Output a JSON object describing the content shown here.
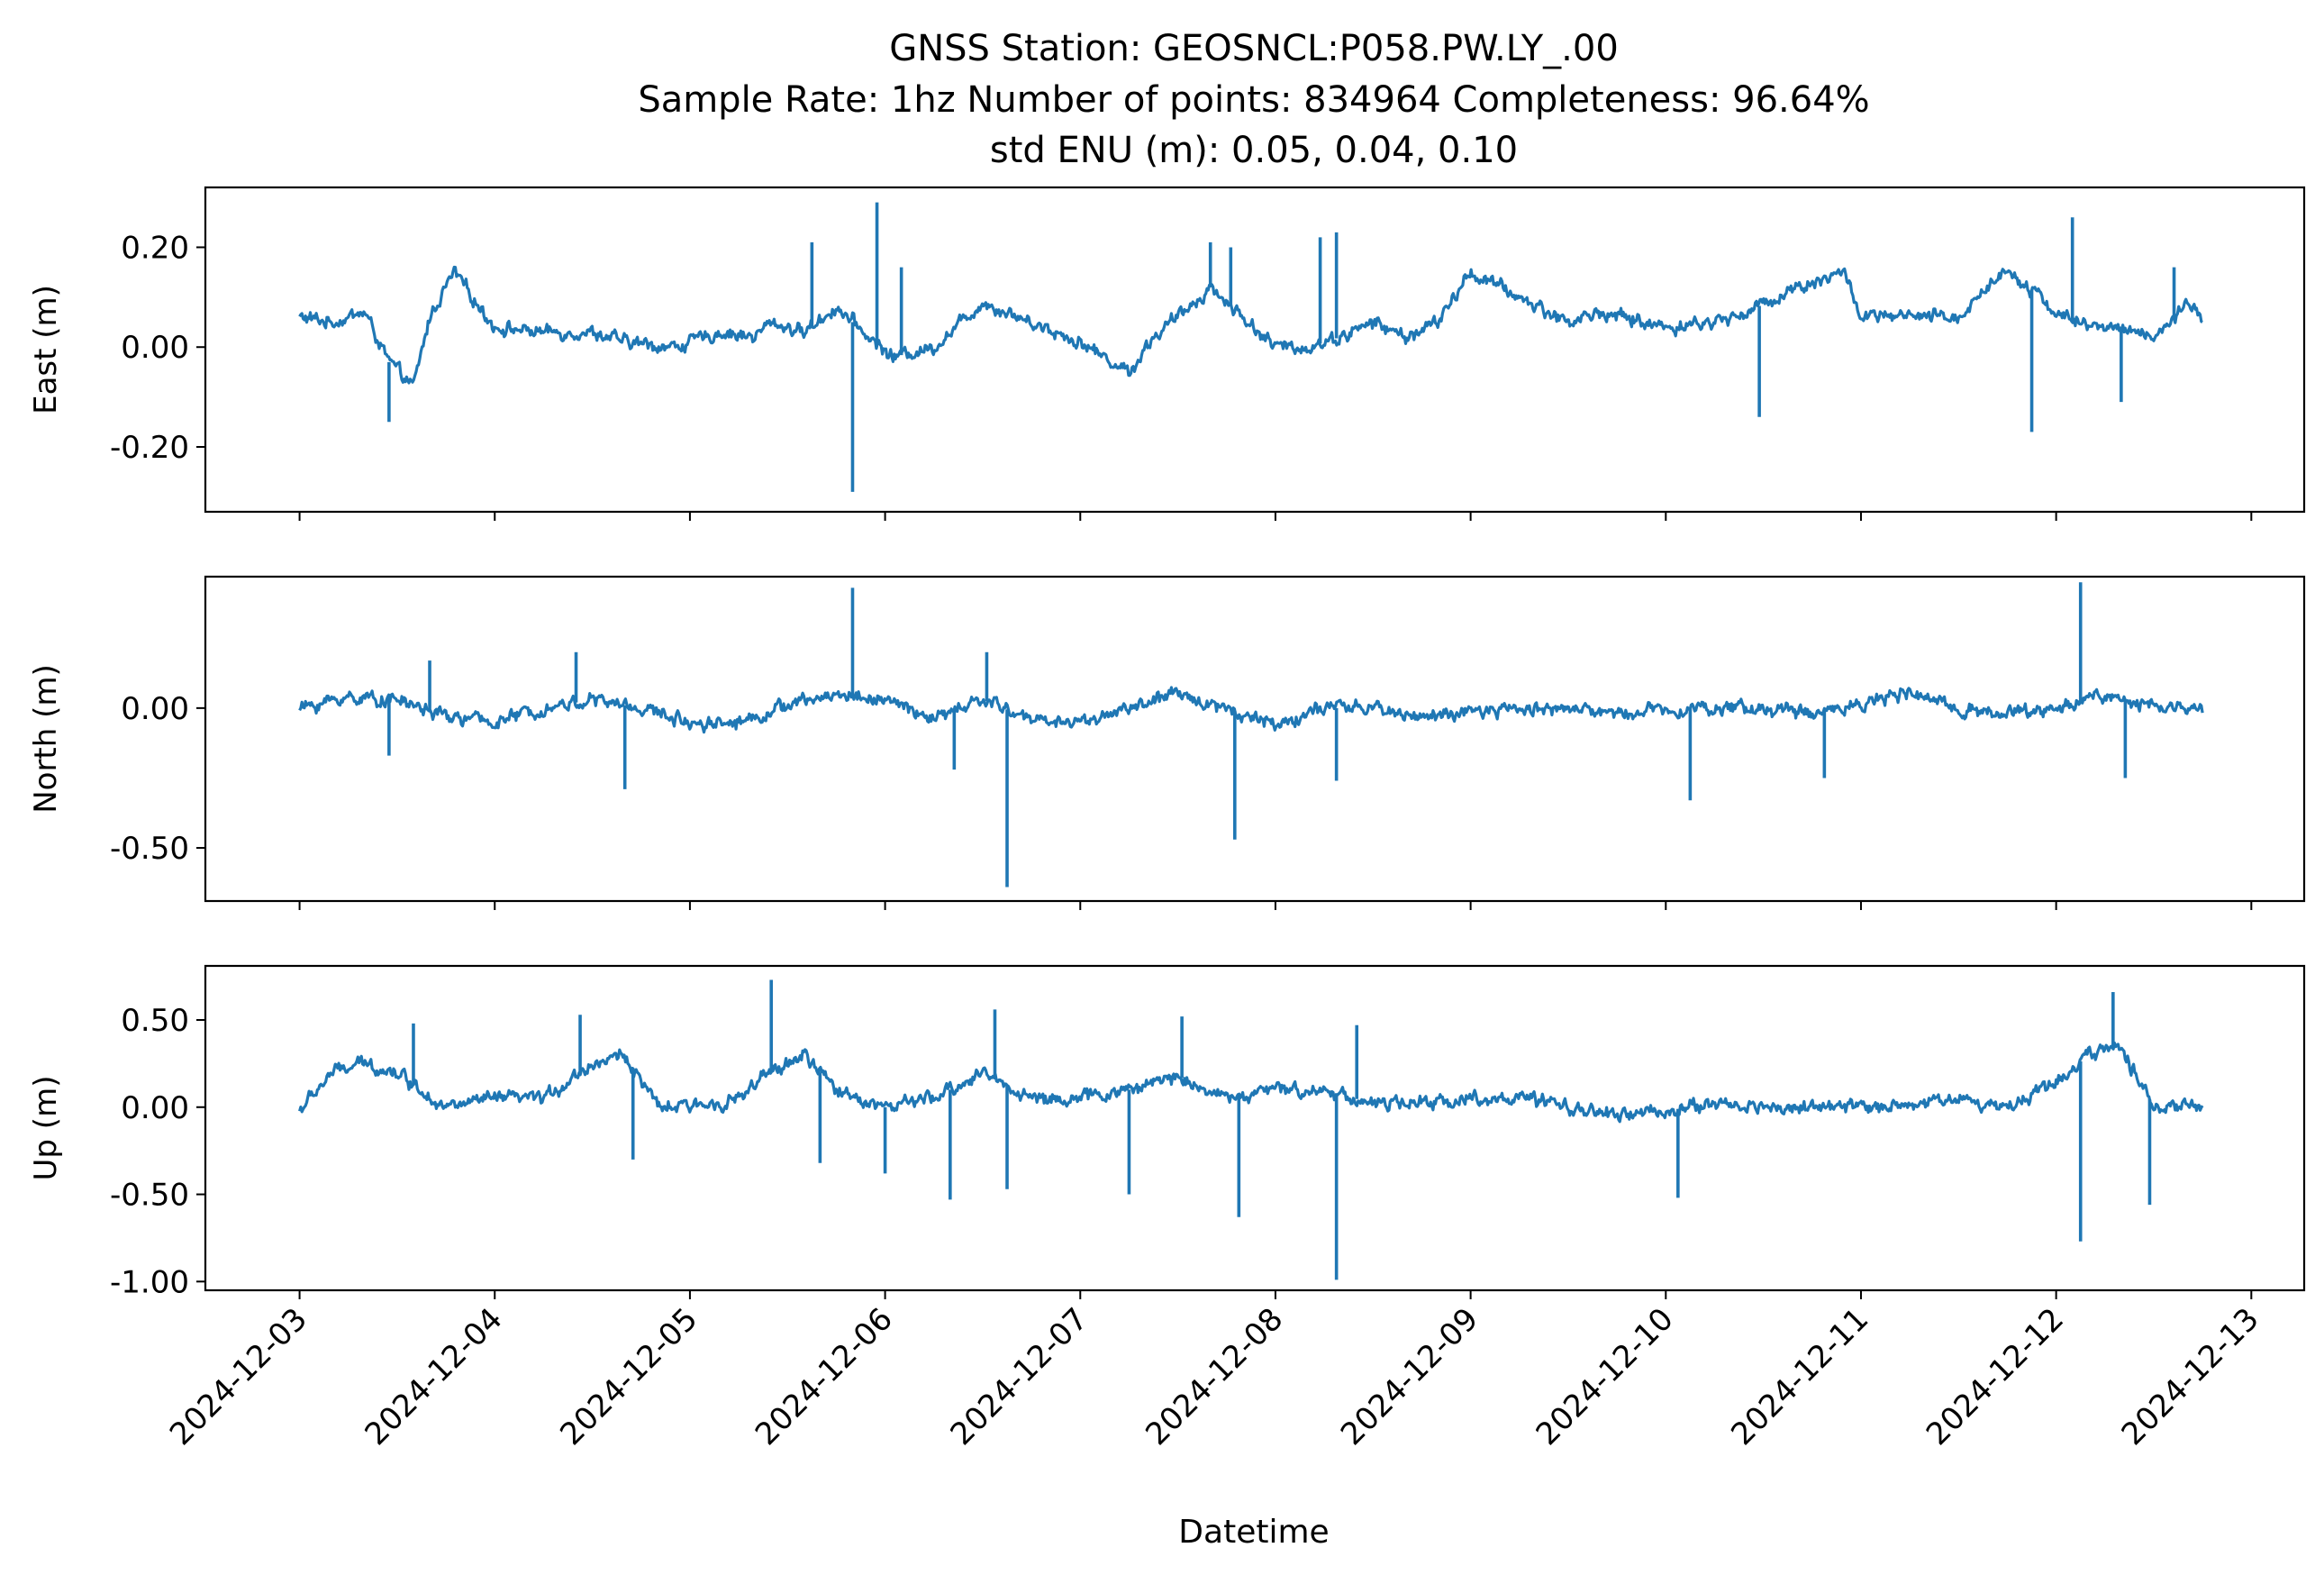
{
  "figure": {
    "title_lines": [
      "GNSS Station: GEOSNCL:P058.PW.LY_.00",
      "Sample Rate: 1hz   Number of points: 834964    Completeness:  96.64%",
      "std ENU (m):  0.05, 0.04, 0.10"
    ],
    "xlabel": "Datetime"
  },
  "chart_data": [
    {
      "type": "line",
      "ylabel": "East (m)",
      "color": "#1f77b4",
      "xlim": [
        "2024-12-02T12:25",
        "2024-12-13T06:30"
      ],
      "ylim": [
        -0.33,
        0.32
      ],
      "yticks": [
        0.2,
        0.0,
        -0.2
      ],
      "ytick_labels": [
        "0.20",
        "0.00",
        "-0.20"
      ],
      "xticks": [
        "2024-12-03",
        "2024-12-04",
        "2024-12-05",
        "2024-12-06",
        "2024-12-07",
        "2024-12-08",
        "2024-12-09",
        "2024-12-10",
        "2024-12-11",
        "2024-12-12",
        "2024-12-13"
      ],
      "series": [
        {
          "x": [
            "2024-12-03T00:00",
            "2024-12-03T04:00",
            "2024-12-03T08:00",
            "2024-12-03T11:00",
            "2024-12-03T14:00",
            "2024-12-03T16:00",
            "2024-12-03T19:00",
            "2024-12-04T00:00",
            "2024-12-04T06:00",
            "2024-12-04T12:00",
            "2024-12-04T16:00",
            "2024-12-04T22:00",
            "2024-12-05T04:00",
            "2024-12-05T08:00",
            "2024-12-05T10:00",
            "2024-12-05T14:00",
            "2024-12-05T18:00",
            "2024-12-05T22:00",
            "2024-12-06T01:00",
            "2024-12-06T06:00",
            "2024-12-06T12:00",
            "2024-12-06T18:00",
            "2024-12-07T00:00",
            "2024-12-07T06:00",
            "2024-12-07T09:00",
            "2024-12-07T12:00",
            "2024-12-07T16:00",
            "2024-12-07T20:00",
            "2024-12-08T00:00",
            "2024-12-08T04:00",
            "2024-12-08T08:00",
            "2024-12-08T12:00",
            "2024-12-08T16:00",
            "2024-12-08T20:00",
            "2024-12-09T00:00",
            "2024-12-09T06:00",
            "2024-12-09T12:00",
            "2024-12-09T16:00",
            "2024-12-10T00:00",
            "2024-12-10T06:00",
            "2024-12-10T10:00",
            "2024-12-10T16:00",
            "2024-12-10T22:00",
            "2024-12-11T00:00",
            "2024-12-11T06:00",
            "2024-12-11T12:00",
            "2024-12-11T18:00",
            "2024-12-12T00:00",
            "2024-12-12T04:00",
            "2024-12-12T08:00",
            "2024-12-12T12:00",
            "2024-12-12T16:00",
            "2024-12-12T18:00"
          ],
          "y": [
            0.06,
            0.05,
            0.07,
            -0.03,
            -0.08,
            0.06,
            0.15,
            0.04,
            0.03,
            0.03,
            0.01,
            0.0,
            0.03,
            0.02,
            0.05,
            0.03,
            0.08,
            0.02,
            -0.02,
            0.0,
            0.09,
            0.05,
            0.01,
            -0.05,
            0.02,
            0.06,
            0.12,
            0.06,
            0.0,
            0.0,
            0.02,
            0.05,
            0.02,
            0.05,
            0.15,
            0.1,
            0.05,
            0.07,
            0.04,
            0.05,
            0.07,
            0.12,
            0.15,
            0.06,
            0.06,
            0.06,
            0.16,
            0.07,
            0.04,
            0.04,
            0.02,
            0.08,
            0.06
          ],
          "spikes": [
            {
              "x": "2024-12-03T11:00",
              "y": -0.15
            },
            {
              "x": "2024-12-05T15:00",
              "y": 0.21
            },
            {
              "x": "2024-12-05T20:00",
              "y": -0.29
            },
            {
              "x": "2024-12-05T23:00",
              "y": 0.29
            },
            {
              "x": "2024-12-06T02:00",
              "y": 0.16
            },
            {
              "x": "2024-12-07T16:00",
              "y": 0.21
            },
            {
              "x": "2024-12-07T18:30",
              "y": 0.2
            },
            {
              "x": "2024-12-08T05:30",
              "y": 0.22
            },
            {
              "x": "2024-12-08T07:30",
              "y": 0.23
            },
            {
              "x": "2024-12-10T11:30",
              "y": -0.14
            },
            {
              "x": "2024-12-11T21:00",
              "y": -0.17
            },
            {
              "x": "2024-12-12T02:00",
              "y": 0.26
            },
            {
              "x": "2024-12-12T08:00",
              "y": -0.11
            },
            {
              "x": "2024-12-12T14:30",
              "y": 0.16
            }
          ]
        }
      ]
    },
    {
      "type": "line",
      "ylabel": "North (m)",
      "color": "#1f77b4",
      "xlim": [
        "2024-12-02T12:25",
        "2024-12-13T06:30"
      ],
      "ylim": [
        -0.69,
        0.47
      ],
      "yticks": [
        0.0,
        -0.5
      ],
      "ytick_labels": [
        "0.00",
        "-0.50"
      ],
      "xticks": [
        "2024-12-03",
        "2024-12-04",
        "2024-12-05",
        "2024-12-06",
        "2024-12-07",
        "2024-12-08",
        "2024-12-09",
        "2024-12-10",
        "2024-12-11",
        "2024-12-12",
        "2024-12-13"
      ],
      "series": [
        {
          "x": [
            "2024-12-03T00:00",
            "2024-12-03T06:00",
            "2024-12-03T12:00",
            "2024-12-03T18:00",
            "2024-12-04T00:00",
            "2024-12-04T06:00",
            "2024-12-04T12:00",
            "2024-12-04T18:00",
            "2024-12-05T00:00",
            "2024-12-05T06:00",
            "2024-12-05T12:00",
            "2024-12-05T18:00",
            "2024-12-06T00:00",
            "2024-12-06T06:00",
            "2024-12-06T12:00",
            "2024-12-06T18:00",
            "2024-12-07T00:00",
            "2024-12-07T06:00",
            "2024-12-07T12:00",
            "2024-12-07T18:00",
            "2024-12-08T00:00",
            "2024-12-08T06:00",
            "2024-12-08T12:00",
            "2024-12-08T18:00",
            "2024-12-09T00:00",
            "2024-12-09T06:00",
            "2024-12-09T12:00",
            "2024-12-09T18:00",
            "2024-12-10T00:00",
            "2024-12-10T06:00",
            "2024-12-10T12:00",
            "2024-12-10T18:00",
            "2024-12-11T00:00",
            "2024-12-11T06:00",
            "2024-12-11T12:00",
            "2024-12-11T18:00",
            "2024-12-12T00:00",
            "2024-12-12T06:00",
            "2024-12-12T12:00",
            "2024-12-12T18:00"
          ],
          "y": [
            0.0,
            0.04,
            0.03,
            -0.03,
            -0.05,
            0.0,
            0.03,
            0.0,
            -0.05,
            -0.05,
            0.01,
            0.05,
            0.03,
            -0.04,
            0.03,
            -0.04,
            -0.05,
            0.0,
            0.05,
            0.0,
            -0.06,
            0.0,
            0.0,
            -0.03,
            -0.02,
            0.0,
            0.0,
            -0.02,
            0.0,
            0.0,
            0.0,
            -0.02,
            0.02,
            0.05,
            0.0,
            -0.02,
            0.0,
            0.05,
            0.0,
            0.0
          ],
          "spikes": [
            {
              "x": "2024-12-03T11:00",
              "y": -0.17
            },
            {
              "x": "2024-12-03T16:00",
              "y": 0.17
            },
            {
              "x": "2024-12-04T10:00",
              "y": 0.2
            },
            {
              "x": "2024-12-04T16:00",
              "y": -0.29
            },
            {
              "x": "2024-12-05T20:00",
              "y": 0.43
            },
            {
              "x": "2024-12-06T08:30",
              "y": -0.22
            },
            {
              "x": "2024-12-06T12:30",
              "y": 0.2
            },
            {
              "x": "2024-12-06T15:00",
              "y": -0.64
            },
            {
              "x": "2024-12-07T19:00",
              "y": -0.47
            },
            {
              "x": "2024-12-08T07:30",
              "y": -0.26
            },
            {
              "x": "2024-12-10T03:00",
              "y": -0.33
            },
            {
              "x": "2024-12-10T19:30",
              "y": -0.25
            },
            {
              "x": "2024-12-12T03:00",
              "y": 0.45
            },
            {
              "x": "2024-12-12T08:30",
              "y": -0.25
            }
          ]
        }
      ]
    },
    {
      "type": "line",
      "ylabel": "Up (m)",
      "color": "#1f77b4",
      "xlim": [
        "2024-12-02T12:25",
        "2024-12-13T06:30"
      ],
      "ylim": [
        -1.05,
        0.81
      ],
      "yticks": [
        0.5,
        0.0,
        -0.5,
        -1.0
      ],
      "ytick_labels": [
        "0.50",
        "0.00",
        "-0.50",
        "-1.00"
      ],
      "xticks": [
        "2024-12-03",
        "2024-12-04",
        "2024-12-05",
        "2024-12-06",
        "2024-12-07",
        "2024-12-08",
        "2024-12-09",
        "2024-12-10",
        "2024-12-11",
        "2024-12-12",
        "2024-12-13"
      ],
      "xtick_labels": [
        "2024-12-03",
        "2024-12-04",
        "2024-12-05",
        "2024-12-06",
        "2024-12-07",
        "2024-12-08",
        "2024-12-09",
        "2024-12-10",
        "2024-12-11",
        "2024-12-12",
        "2024-12-13"
      ],
      "series": [
        {
          "x": [
            "2024-12-03T00:00",
            "2024-12-03T04:00",
            "2024-12-03T08:00",
            "2024-12-03T12:00",
            "2024-12-03T18:00",
            "2024-12-04T00:00",
            "2024-12-04T06:00",
            "2024-12-04T12:00",
            "2024-12-04T16:00",
            "2024-12-04T20:00",
            "2024-12-05T00:00",
            "2024-12-05T06:00",
            "2024-12-05T10:00",
            "2024-12-05T14:00",
            "2024-12-05T18:00",
            "2024-12-06T00:00",
            "2024-12-06T06:00",
            "2024-12-06T12:00",
            "2024-12-06T18:00",
            "2024-12-07T00:00",
            "2024-12-07T06:00",
            "2024-12-07T12:00",
            "2024-12-07T18:00",
            "2024-12-08T00:00",
            "2024-12-08T06:00",
            "2024-12-08T12:00",
            "2024-12-08T18:00",
            "2024-12-09T00:00",
            "2024-12-09T06:00",
            "2024-12-09T12:00",
            "2024-12-09T18:00",
            "2024-12-10T00:00",
            "2024-12-10T06:00",
            "2024-12-10T12:00",
            "2024-12-10T18:00",
            "2024-12-11T00:00",
            "2024-12-11T06:00",
            "2024-12-11T12:00",
            "2024-12-11T18:00",
            "2024-12-12T00:00",
            "2024-12-12T04:00",
            "2024-12-12T08:00",
            "2024-12-12T12:00",
            "2024-12-12T18:00"
          ],
          "y": [
            -0.02,
            0.2,
            0.25,
            0.2,
            0.0,
            0.05,
            0.05,
            0.25,
            0.3,
            0.0,
            0.0,
            0.05,
            0.2,
            0.3,
            0.1,
            0.0,
            0.05,
            0.2,
            0.05,
            0.05,
            0.1,
            0.18,
            0.05,
            0.1,
            0.1,
            0.02,
            0.02,
            0.05,
            0.05,
            0.0,
            -0.05,
            -0.02,
            0.02,
            0.0,
            0.0,
            0.0,
            0.02,
            0.05,
            0.0,
            0.15,
            0.3,
            0.35,
            0.0,
            0.0
          ],
          "spikes": [
            {
              "x": "2024-12-03T14:00",
              "y": 0.48
            },
            {
              "x": "2024-12-04T10:30",
              "y": 0.53
            },
            {
              "x": "2024-12-04T17:00",
              "y": -0.3
            },
            {
              "x": "2024-12-05T10:00",
              "y": 0.73
            },
            {
              "x": "2024-12-05T16:00",
              "y": -0.32
            },
            {
              "x": "2024-12-06T00:00",
              "y": -0.38
            },
            {
              "x": "2024-12-06T08:00",
              "y": -0.53
            },
            {
              "x": "2024-12-06T13:30",
              "y": 0.56
            },
            {
              "x": "2024-12-06T15:00",
              "y": -0.47
            },
            {
              "x": "2024-12-07T06:00",
              "y": -0.5
            },
            {
              "x": "2024-12-07T12:30",
              "y": 0.52
            },
            {
              "x": "2024-12-07T19:30",
              "y": -0.63
            },
            {
              "x": "2024-12-08T07:30",
              "y": -0.99
            },
            {
              "x": "2024-12-08T10:00",
              "y": 0.47
            },
            {
              "x": "2024-12-10T01:30",
              "y": -0.52
            },
            {
              "x": "2024-12-12T03:00",
              "y": -0.77
            },
            {
              "x": "2024-12-12T07:00",
              "y": 0.66
            },
            {
              "x": "2024-12-12T11:30",
              "y": -0.56
            }
          ]
        }
      ]
    }
  ]
}
